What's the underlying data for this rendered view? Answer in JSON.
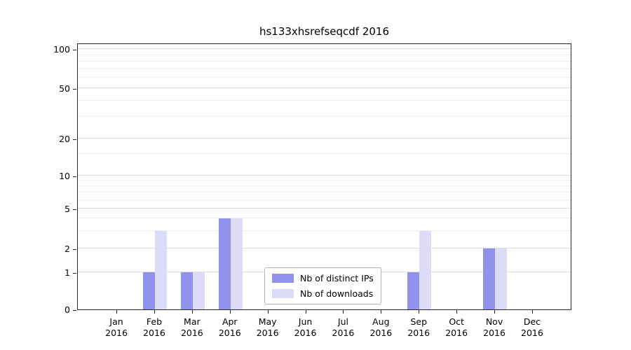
{
  "chart_data": {
    "type": "bar",
    "title": "hs133xhsrefseqcdf 2016",
    "categories": [
      "Jan 2016",
      "Feb 2016",
      "Mar 2016",
      "Apr 2016",
      "May 2016",
      "Jun 2016",
      "Jul 2016",
      "Aug 2016",
      "Sep 2016",
      "Oct 2016",
      "Nov 2016",
      "Dec 2016"
    ],
    "series": [
      {
        "name": "Nb of distinct IPs",
        "color": "#9191ee",
        "values": [
          0,
          1,
          1,
          4,
          0,
          0,
          0,
          0,
          1,
          0,
          2,
          0
        ]
      },
      {
        "name": "Nb of downloads",
        "color": "#dcdcf8",
        "values": [
          0,
          3,
          1,
          4,
          0,
          0,
          0,
          0,
          3,
          0,
          2,
          0
        ]
      }
    ],
    "xlabel": "",
    "ylabel": "",
    "yscale": "symlog",
    "y_ticks": [
      0,
      1,
      2,
      5,
      10,
      20,
      50,
      100
    ],
    "ylim": [
      0,
      150
    ],
    "grid": true,
    "legend_position": "lower center"
  }
}
